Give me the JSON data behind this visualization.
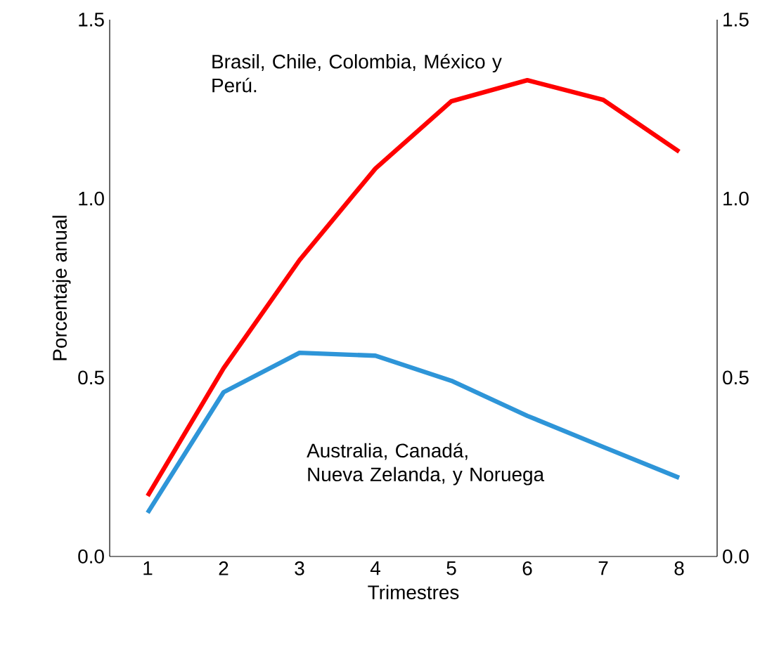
{
  "chart_data": {
    "type": "line",
    "xlabel": "Trimestres",
    "ylabel": "Porcentaje anual",
    "x": [
      1,
      2,
      3,
      4,
      5,
      6,
      7,
      8
    ],
    "series": [
      {
        "name": "Brasil, Chile, Colombia, México y Perú.",
        "color": "#ff0000",
        "values": [
          0.169,
          0.526,
          0.828,
          1.084,
          1.272,
          1.331,
          1.276,
          1.131
        ]
      },
      {
        "name": "Australia, Canadá, Nueva Zelanda, y Noruega",
        "color": "#2e95d8",
        "values": [
          0.122,
          0.459,
          0.569,
          0.561,
          0.491,
          0.393,
          0.306,
          0.22
        ]
      }
    ],
    "xlim": [
      0.5,
      8.5
    ],
    "xticks": [
      1,
      2,
      3,
      4,
      5,
      6,
      7,
      8
    ],
    "ylim": [
      0,
      1.5
    ],
    "yticks": [
      {
        "value": 0,
        "label": "0.0"
      },
      {
        "value": 0.5,
        "label": "0.5"
      },
      {
        "value": 1,
        "label": "1.0"
      },
      {
        "value": 1.5,
        "label": "1.5"
      }
    ],
    "y2lim": [
      0,
      1.5
    ],
    "y2ticks": [
      {
        "value": 0,
        "label": "0.0"
      },
      {
        "value": 0.5,
        "label": "0.5"
      },
      {
        "value": 1,
        "label": "1.0"
      },
      {
        "value": 1.5,
        "label": "1.5"
      }
    ],
    "legend": false,
    "grid": false,
    "marker": "none",
    "line_style": "solid"
  }
}
